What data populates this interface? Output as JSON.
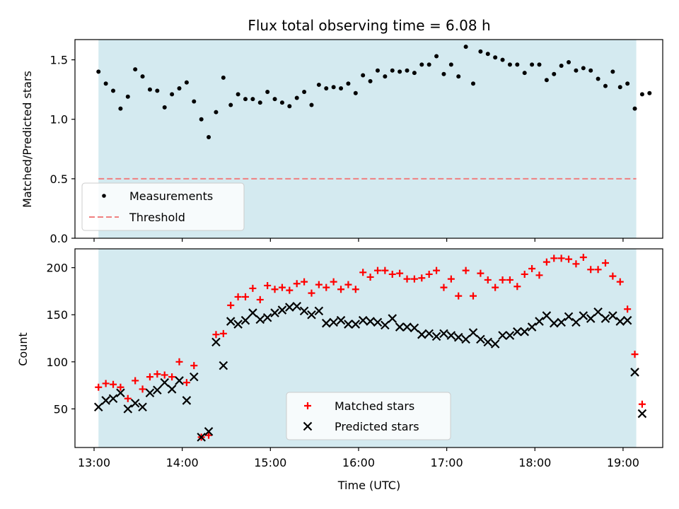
{
  "figure": {
    "title": "Flux total observing time = 6.08 h",
    "xlabel": "Time (UTC)",
    "shade_color": "#d4eaf0"
  },
  "chart_data": [
    {
      "type": "scatter",
      "ylabel": "Matched/Predicted stars",
      "xlim": [
        "12:47",
        "19:27"
      ],
      "ylim": [
        0,
        1.67
      ],
      "yticks": [
        0.0,
        0.5,
        1.0,
        1.5
      ],
      "ytick_labels": [
        "0.0",
        "0.5",
        "1.0",
        "1.5"
      ],
      "shaded_span": [
        "13:03",
        "19:09"
      ],
      "legend_position": "lower-left",
      "threshold": {
        "name": "Threshold",
        "value": 0.5,
        "color": "#f08080",
        "style": "dashed"
      },
      "series": [
        {
          "name": "Measurements",
          "color": "#000000",
          "marker": "dot",
          "points": [
            [
              "13:03",
              1.4
            ],
            [
              "13:08",
              1.3
            ],
            [
              "13:13",
              1.24
            ],
            [
              "13:18",
              1.09
            ],
            [
              "13:23",
              1.19
            ],
            [
              "13:28",
              1.42
            ],
            [
              "13:33",
              1.36
            ],
            [
              "13:38",
              1.25
            ],
            [
              "13:43",
              1.24
            ],
            [
              "13:48",
              1.1
            ],
            [
              "13:53",
              1.21
            ],
            [
              "13:58",
              1.26
            ],
            [
              "14:03",
              1.31
            ],
            [
              "14:08",
              1.15
            ],
            [
              "14:13",
              1.0
            ],
            [
              "14:18",
              0.85
            ],
            [
              "14:23",
              1.06
            ],
            [
              "14:28",
              1.35
            ],
            [
              "14:33",
              1.12
            ],
            [
              "14:38",
              1.21
            ],
            [
              "14:43",
              1.17
            ],
            [
              "14:48",
              1.17
            ],
            [
              "14:53",
              1.14
            ],
            [
              "14:58",
              1.23
            ],
            [
              "15:03",
              1.17
            ],
            [
              "15:08",
              1.14
            ],
            [
              "15:13",
              1.11
            ],
            [
              "15:18",
              1.18
            ],
            [
              "15:23",
              1.23
            ],
            [
              "15:28",
              1.12
            ],
            [
              "15:33",
              1.29
            ],
            [
              "15:38",
              1.26
            ],
            [
              "15:43",
              1.27
            ],
            [
              "15:48",
              1.26
            ],
            [
              "15:53",
              1.3
            ],
            [
              "15:58",
              1.22
            ],
            [
              "16:03",
              1.37
            ],
            [
              "16:08",
              1.32
            ],
            [
              "16:13",
              1.41
            ],
            [
              "16:18",
              1.36
            ],
            [
              "16:23",
              1.41
            ],
            [
              "16:28",
              1.4
            ],
            [
              "16:33",
              1.41
            ],
            [
              "16:38",
              1.39
            ],
            [
              "16:43",
              1.46
            ],
            [
              "16:48",
              1.46
            ],
            [
              "16:53",
              1.53
            ],
            [
              "16:58",
              1.38
            ],
            [
              "17:03",
              1.46
            ],
            [
              "17:08",
              1.36
            ],
            [
              "17:13",
              1.61
            ],
            [
              "17:18",
              1.3
            ],
            [
              "17:23",
              1.57
            ],
            [
              "17:28",
              1.55
            ],
            [
              "17:33",
              1.52
            ],
            [
              "17:38",
              1.5
            ],
            [
              "17:43",
              1.46
            ],
            [
              "17:48",
              1.46
            ],
            [
              "17:53",
              1.39
            ],
            [
              "17:58",
              1.46
            ],
            [
              "18:03",
              1.46
            ],
            [
              "18:08",
              1.33
            ],
            [
              "18:13",
              1.38
            ],
            [
              "18:18",
              1.45
            ],
            [
              "18:23",
              1.48
            ],
            [
              "18:28",
              1.41
            ],
            [
              "18:33",
              1.43
            ],
            [
              "18:38",
              1.41
            ],
            [
              "18:43",
              1.34
            ],
            [
              "18:48",
              1.28
            ],
            [
              "18:53",
              1.4
            ],
            [
              "18:58",
              1.27
            ],
            [
              "19:03",
              1.3
            ],
            [
              "19:08",
              1.09
            ],
            [
              "19:13",
              1.21
            ],
            [
              "19:18",
              1.22
            ]
          ]
        }
      ]
    },
    {
      "type": "scatter",
      "ylabel": "Count",
      "xlim": [
        "12:47",
        "19:27"
      ],
      "ylim": [
        9,
        220
      ],
      "yticks": [
        50,
        100,
        150,
        200
      ],
      "ytick_labels": [
        "50",
        "100",
        "150",
        "200"
      ],
      "xticks": [
        "13:00",
        "14:00",
        "15:00",
        "16:00",
        "17:00",
        "18:00",
        "19:00"
      ],
      "xtick_labels": [
        "13:00",
        "14:00",
        "15:00",
        "16:00",
        "17:00",
        "18:00",
        "19:00"
      ],
      "shaded_span": [
        "13:03",
        "19:09"
      ],
      "legend_position": "lower-center",
      "series": [
        {
          "name": "Matched stars",
          "color": "#ff0000",
          "marker": "plus",
          "points": [
            [
              "13:03",
              73
            ],
            [
              "13:08",
              77
            ],
            [
              "13:13",
              76
            ],
            [
              "13:18",
              73
            ],
            [
              "13:23",
              61
            ],
            [
              "13:28",
              80
            ],
            [
              "13:33",
              71
            ],
            [
              "13:38",
              84
            ],
            [
              "13:43",
              87
            ],
            [
              "13:48",
              86
            ],
            [
              "13:53",
              84
            ],
            [
              "13:58",
              100
            ],
            [
              "14:03",
              78
            ],
            [
              "14:08",
              96
            ],
            [
              "14:13",
              20
            ],
            [
              "14:18",
              22
            ],
            [
              "14:23",
              129
            ],
            [
              "14:28",
              130
            ],
            [
              "14:33",
              160
            ],
            [
              "14:38",
              169
            ],
            [
              "14:43",
              169
            ],
            [
              "14:48",
              178
            ],
            [
              "14:53",
              166
            ],
            [
              "14:58",
              181
            ],
            [
              "15:03",
              177
            ],
            [
              "15:08",
              179
            ],
            [
              "15:13",
              176
            ],
            [
              "15:18",
              183
            ],
            [
              "15:23",
              185
            ],
            [
              "15:28",
              173
            ],
            [
              "15:33",
              182
            ],
            [
              "15:38",
              179
            ],
            [
              "15:43",
              185
            ],
            [
              "15:48",
              177
            ],
            [
              "15:53",
              182
            ],
            [
              "15:58",
              177
            ],
            [
              "16:03",
              195
            ],
            [
              "16:08",
              190
            ],
            [
              "16:13",
              197
            ],
            [
              "16:18",
              197
            ],
            [
              "16:23",
              193
            ],
            [
              "16:28",
              194
            ],
            [
              "16:33",
              188
            ],
            [
              "16:38",
              188
            ],
            [
              "16:43",
              189
            ],
            [
              "16:48",
              193
            ],
            [
              "16:53",
              197
            ],
            [
              "16:58",
              179
            ],
            [
              "17:03",
              188
            ],
            [
              "17:08",
              170
            ],
            [
              "17:13",
              197
            ],
            [
              "17:18",
              170
            ],
            [
              "17:23",
              194
            ],
            [
              "17:28",
              187
            ],
            [
              "17:33",
              179
            ],
            [
              "17:38",
              187
            ],
            [
              "17:43",
              187
            ],
            [
              "17:48",
              180
            ],
            [
              "17:53",
              193
            ],
            [
              "17:58",
              199
            ],
            [
              "18:03",
              192
            ],
            [
              "18:08",
              206
            ],
            [
              "18:13",
              210
            ],
            [
              "18:18",
              210
            ],
            [
              "18:23",
              209
            ],
            [
              "18:28",
              204
            ],
            [
              "18:33",
              211
            ],
            [
              "18:38",
              198
            ],
            [
              "18:43",
              198
            ],
            [
              "18:48",
              205
            ],
            [
              "18:53",
              191
            ],
            [
              "18:58",
              185
            ],
            [
              "19:03",
              156
            ],
            [
              "19:08",
              108
            ],
            [
              "19:13",
              55
            ]
          ]
        },
        {
          "name": "Predicted stars",
          "color": "#000000",
          "marker": "x",
          "points": [
            [
              "13:03",
              52
            ],
            [
              "13:08",
              59
            ],
            [
              "13:13",
              61
            ],
            [
              "13:18",
              67
            ],
            [
              "13:23",
              50
            ],
            [
              "13:28",
              56
            ],
            [
              "13:33",
              52
            ],
            [
              "13:38",
              67
            ],
            [
              "13:43",
              70
            ],
            [
              "13:48",
              78
            ],
            [
              "13:53",
              71
            ],
            [
              "13:58",
              80
            ],
            [
              "14:03",
              59
            ],
            [
              "14:08",
              84
            ],
            [
              "14:13",
              20
            ],
            [
              "14:18",
              26
            ],
            [
              "14:23",
              121
            ],
            [
              "14:28",
              96
            ],
            [
              "14:33",
              143
            ],
            [
              "14:38",
              140
            ],
            [
              "14:43",
              144
            ],
            [
              "14:48",
              152
            ],
            [
              "14:53",
              145
            ],
            [
              "14:58",
              147
            ],
            [
              "15:03",
              152
            ],
            [
              "15:08",
              155
            ],
            [
              "15:13",
              158
            ],
            [
              "15:18",
              159
            ],
            [
              "15:23",
              154
            ],
            [
              "15:28",
              150
            ],
            [
              "15:33",
              154
            ],
            [
              "15:38",
              141
            ],
            [
              "15:43",
              142
            ],
            [
              "15:48",
              144
            ],
            [
              "15:53",
              140
            ],
            [
              "15:58",
              140
            ],
            [
              "16:03",
              144
            ],
            [
              "16:08",
              143
            ],
            [
              "16:13",
              142
            ],
            [
              "16:18",
              139
            ],
            [
              "16:23",
              146
            ],
            [
              "16:28",
              137
            ],
            [
              "16:33",
              137
            ],
            [
              "16:38",
              136
            ],
            [
              "16:43",
              129
            ],
            [
              "16:48",
              130
            ],
            [
              "16:53",
              127
            ],
            [
              "16:58",
              130
            ],
            [
              "17:03",
              128
            ],
            [
              "17:08",
              126
            ],
            [
              "17:13",
              124
            ],
            [
              "17:18",
              131
            ],
            [
              "17:23",
              124
            ],
            [
              "17:28",
              121
            ],
            [
              "17:33",
              119
            ],
            [
              "17:38",
              128
            ],
            [
              "17:43",
              128
            ],
            [
              "17:48",
              132
            ],
            [
              "17:53",
              132
            ],
            [
              "17:58",
              137
            ],
            [
              "18:03",
              143
            ],
            [
              "18:08",
              149
            ],
            [
              "18:13",
              141
            ],
            [
              "18:18",
              142
            ],
            [
              "18:23",
              148
            ],
            [
              "18:28",
              142
            ],
            [
              "18:33",
              149
            ],
            [
              "18:38",
              146
            ],
            [
              "18:43",
              153
            ],
            [
              "18:48",
              146
            ],
            [
              "18:53",
              149
            ],
            [
              "18:58",
              143
            ],
            [
              "19:03",
              144
            ],
            [
              "19:08",
              89
            ],
            [
              "19:13",
              45
            ]
          ]
        }
      ]
    }
  ]
}
